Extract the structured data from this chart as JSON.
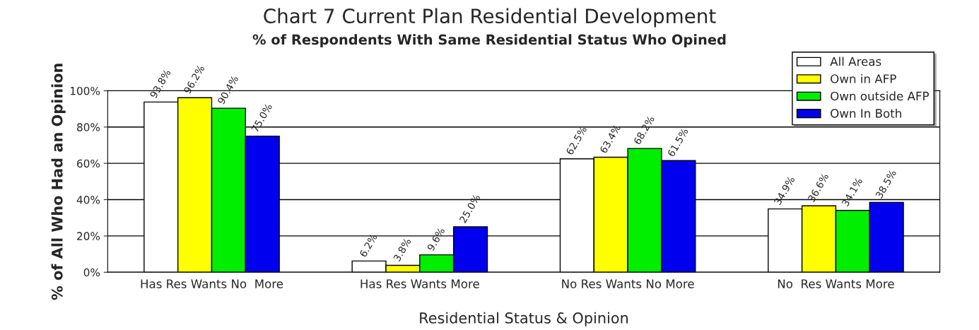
{
  "chart_data": {
    "type": "bar",
    "title": "Chart 7 Current Plan Residential Development",
    "subtitle": "% of Respondents With Same Residential Status Who Opined",
    "xlabel": "Residential Status & Opinion",
    "ylabel": "% of All Who Had an Opinion",
    "categories": [
      "Has Res Wants No  More",
      "Has Res Wants More",
      "No Res Wants No More",
      "No  Res Wants More"
    ],
    "series": [
      {
        "name": "All Areas",
        "color": "#ffffff",
        "values": [
          93.8,
          6.2,
          62.5,
          34.9
        ],
        "value_labels": [
          "93.8%",
          "6.2%",
          "62.5%",
          "34.9%"
        ]
      },
      {
        "name": "Own in AFP",
        "color": "#ffff00",
        "values": [
          96.2,
          3.8,
          63.4,
          36.6
        ],
        "value_labels": [
          "96.2%",
          "3.8%",
          "63.4%",
          "36.6%"
        ]
      },
      {
        "name": "Own outside AFP",
        "color": "#00ee00",
        "values": [
          90.4,
          9.6,
          68.2,
          34.1
        ],
        "value_labels": [
          "90.4%",
          "9.6%",
          "68.2%",
          "34.1%"
        ]
      },
      {
        "name": "Own In Both",
        "color": "#0000ee",
        "values": [
          75.0,
          25.0,
          61.5,
          38.5
        ],
        "value_labels": [
          "75.0%",
          "25.0%",
          "61.5%",
          "38.5%"
        ]
      }
    ],
    "ylim": [
      0,
      100
    ],
    "yticks": [
      {
        "value": 0,
        "label": "0%"
      },
      {
        "value": 20,
        "label": "20%"
      },
      {
        "value": 40,
        "label": "40%"
      },
      {
        "value": 60,
        "label": "60%"
      },
      {
        "value": 80,
        "label": "80%"
      },
      {
        "value": 100,
        "label": "100%"
      }
    ],
    "grid": "y",
    "legend": "top right"
  }
}
